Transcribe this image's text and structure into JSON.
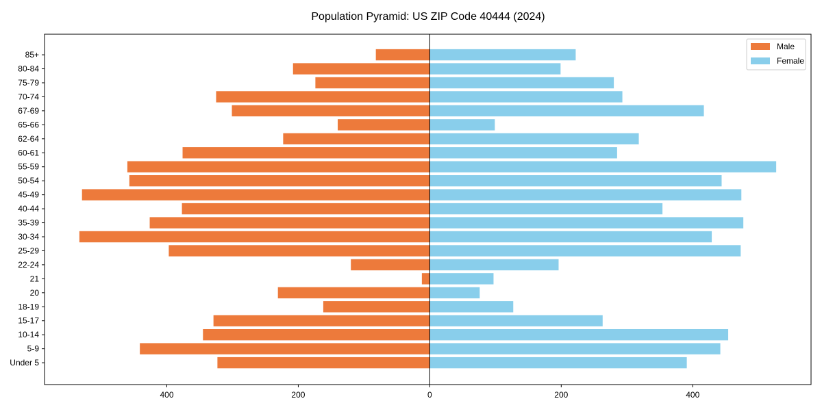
{
  "chart_data": {
    "type": "bar",
    "orientation": "horizontal-diverging",
    "title": "Population Pyramid: US ZIP Code 40444 (2024)",
    "xlabel": "",
    "ylabel": "",
    "categories": [
      "Under 5",
      "5-9",
      "10-14",
      "15-17",
      "18-19",
      "20",
      "21",
      "22-24",
      "25-29",
      "30-34",
      "35-39",
      "40-44",
      "45-49",
      "50-54",
      "55-59",
      "60-61",
      "62-64",
      "65-66",
      "67-69",
      "70-74",
      "75-79",
      "80-84",
      "85+"
    ],
    "series": [
      {
        "name": "Male",
        "color": "#ED7A3B",
        "values": [
          323,
          441,
          345,
          329,
          162,
          231,
          12,
          120,
          397,
          533,
          426,
          377,
          529,
          457,
          460,
          376,
          223,
          140,
          301,
          325,
          174,
          208,
          82
        ]
      },
      {
        "name": "Female",
        "color": "#89CEEB",
        "values": [
          391,
          442,
          454,
          263,
          127,
          76,
          97,
          196,
          473,
          429,
          477,
          354,
          474,
          444,
          527,
          285,
          318,
          99,
          417,
          293,
          280,
          199,
          222
        ]
      }
    ],
    "xlim": [
      -586,
      580
    ],
    "xticks": [
      -400,
      -200,
      0,
      200,
      400
    ],
    "xtick_labels": [
      "400",
      "200",
      "0",
      "200",
      "400"
    ],
    "grid": false,
    "legend": "top-right"
  }
}
